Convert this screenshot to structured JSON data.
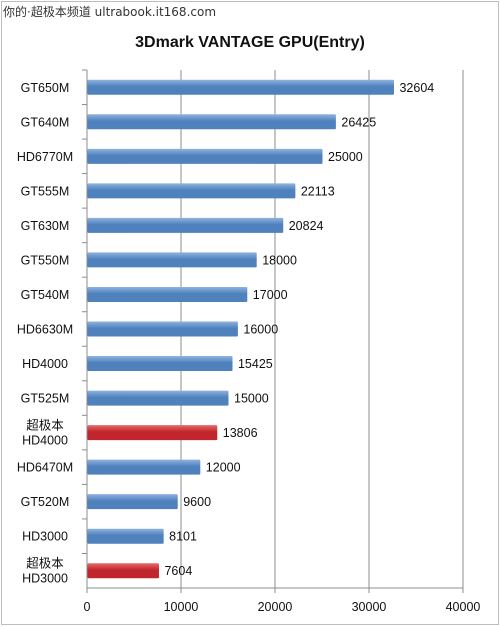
{
  "watermark": "你的·超极本频道 ultrabook.it168.com",
  "chart_data": {
    "type": "bar",
    "orientation": "horizontal",
    "title": "3Dmark VANTAGE GPU(Entry)",
    "categories": [
      [
        "GT650M"
      ],
      [
        "GT640M"
      ],
      [
        "HD6770M"
      ],
      [
        "GT555M"
      ],
      [
        "GT630M"
      ],
      [
        "GT550M"
      ],
      [
        "GT540M"
      ],
      [
        "HD6630M"
      ],
      [
        "HD4000"
      ],
      [
        "GT525M"
      ],
      [
        "超极本",
        "HD4000"
      ],
      [
        "HD6470M"
      ],
      [
        "GT520M"
      ],
      [
        "HD3000"
      ],
      [
        "超极本",
        "HD3000"
      ]
    ],
    "values": [
      32604,
      26425,
      25000,
      22113,
      20824,
      18000,
      17000,
      16000,
      15425,
      15000,
      13806,
      12000,
      9600,
      8101,
      7604
    ],
    "highlighted": [
      false,
      false,
      false,
      false,
      false,
      false,
      false,
      false,
      false,
      false,
      true,
      false,
      false,
      false,
      true
    ],
    "xlim": [
      0,
      40000
    ],
    "xticks": [
      "0",
      "10000",
      "20000",
      "30000",
      "40000"
    ],
    "xtick_values": [
      0,
      10000,
      20000,
      30000,
      40000
    ],
    "grid": "vertical",
    "colors": {
      "bar_blue": "#4f81bd",
      "bar_blue_light": "#8fb3e0",
      "bar_red": "#c0262c",
      "bar_red_light": "#e86a6a",
      "gridline": "#8c8c8c",
      "axis": "#8c8c8c"
    }
  }
}
